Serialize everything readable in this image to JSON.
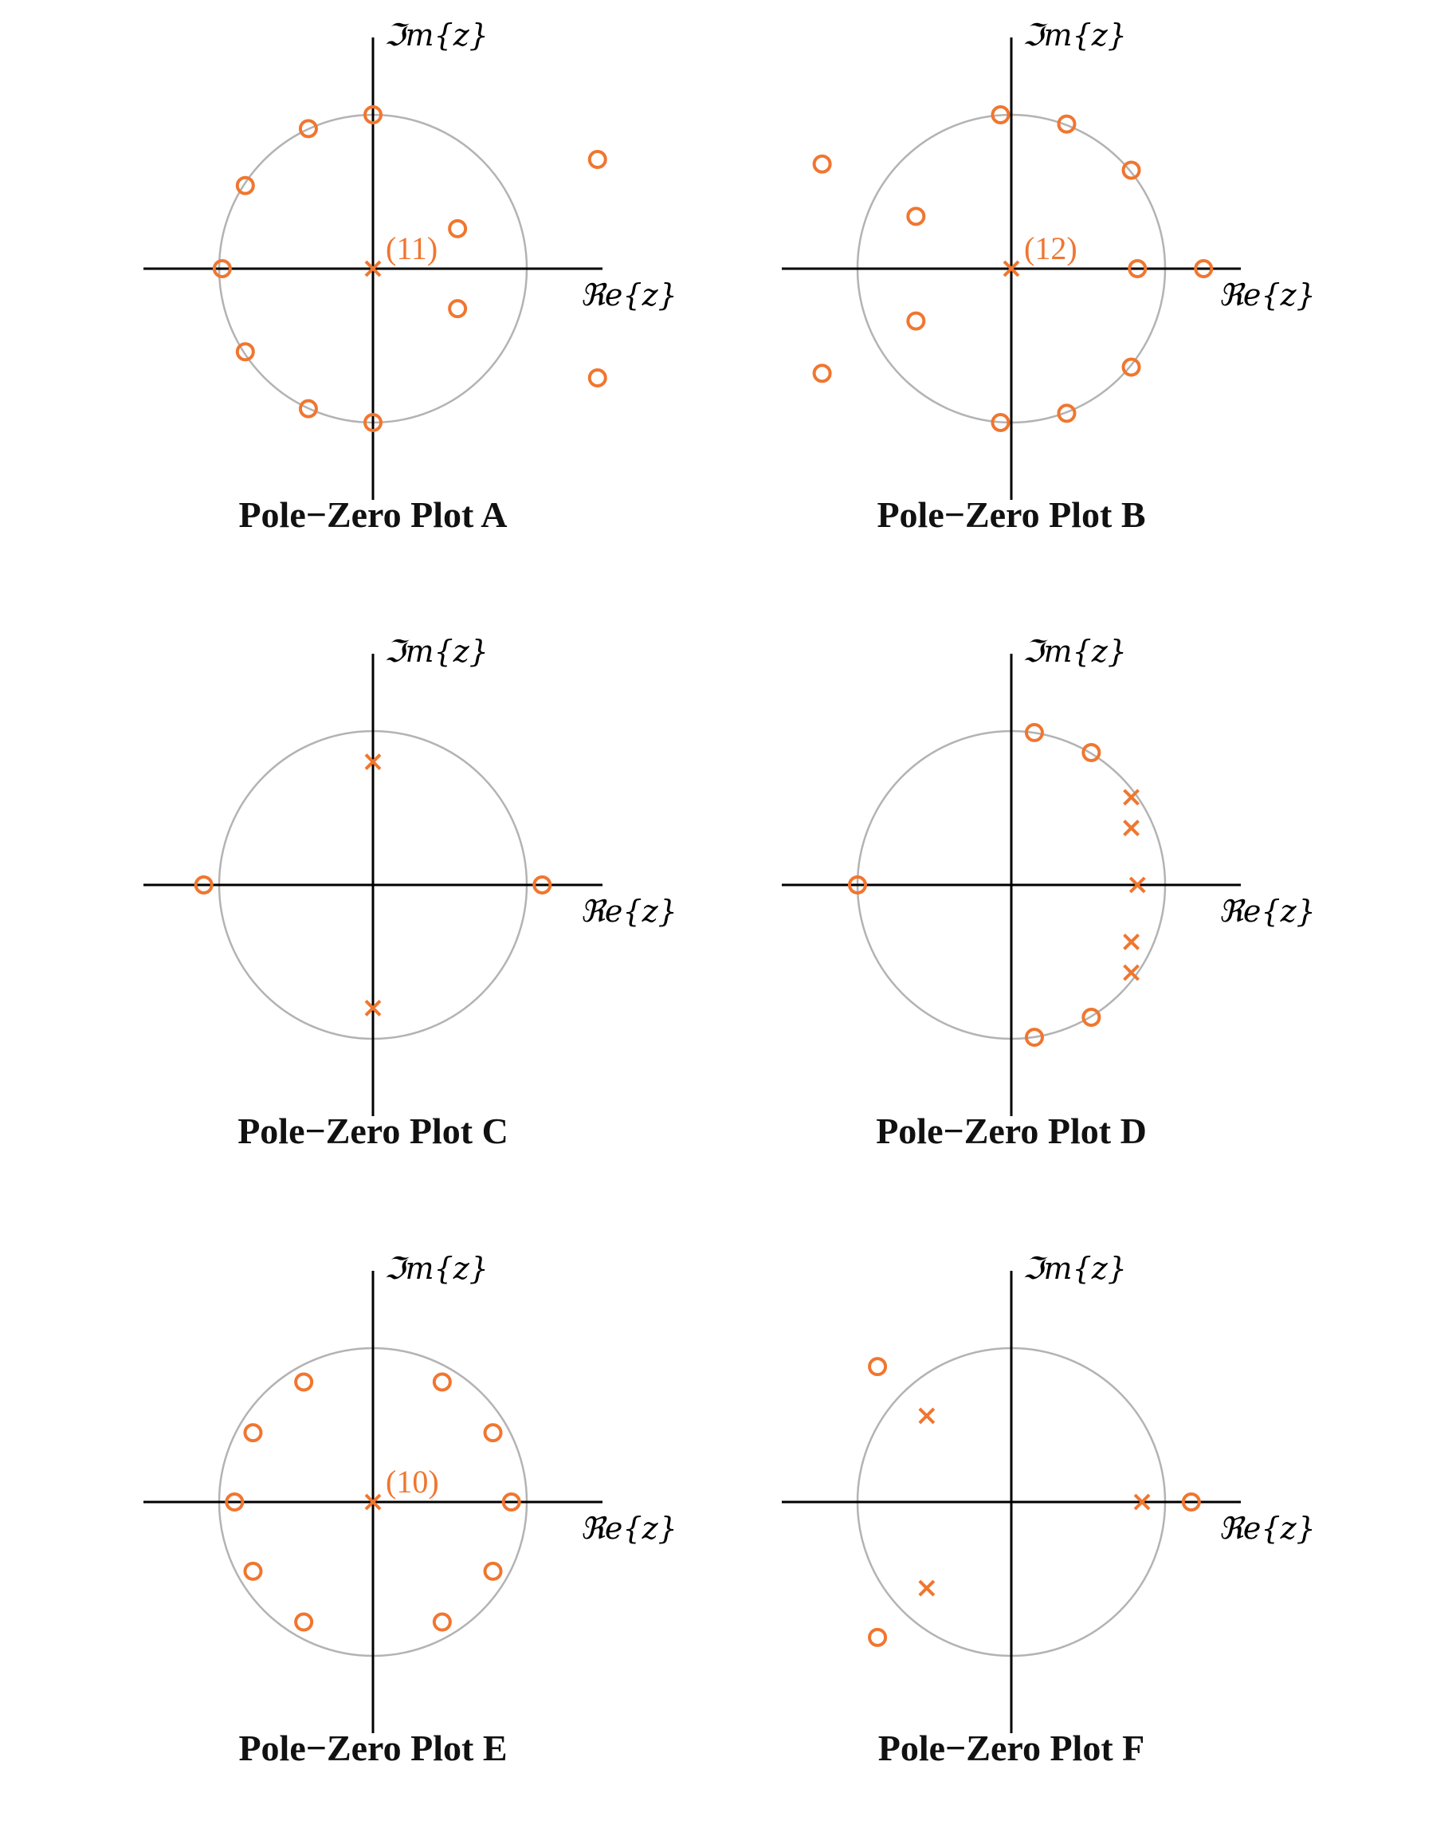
{
  "colors": {
    "marker": "#f0762f",
    "unit_circle": "#b3b3b3",
    "axis": "#000000"
  },
  "chart_data": [
    {
      "type": "scatter",
      "title": "Pole−Zero Plot A",
      "xlabel": "ℜe{z}",
      "ylabel": "ℑm{z}",
      "unit_circle": true,
      "poles": [
        {
          "re": 0.0,
          "im": 0.0,
          "label": "(11)"
        }
      ],
      "zeros": [
        {
          "re": 0.0,
          "im": 1.0
        },
        {
          "re": -0.42,
          "im": 0.91
        },
        {
          "re": -0.83,
          "im": 0.54
        },
        {
          "re": -0.98,
          "im": 0.0
        },
        {
          "re": -0.83,
          "im": -0.54
        },
        {
          "re": -0.42,
          "im": -0.91
        },
        {
          "re": 0.0,
          "im": -1.0
        },
        {
          "re": 0.55,
          "im": 0.26
        },
        {
          "re": 0.55,
          "im": -0.26
        },
        {
          "re": 1.46,
          "im": 0.71
        },
        {
          "re": 1.46,
          "im": -0.71
        }
      ]
    },
    {
      "type": "scatter",
      "title": "Pole−Zero Plot B",
      "xlabel": "ℜe{z}",
      "ylabel": "ℑm{z}",
      "unit_circle": true,
      "poles": [
        {
          "re": 0.0,
          "im": 0.0,
          "label": "(12)"
        }
      ],
      "zeros": [
        {
          "re": -0.07,
          "im": 1.0
        },
        {
          "re": 0.36,
          "im": 0.94
        },
        {
          "re": 0.78,
          "im": 0.64
        },
        {
          "re": 0.82,
          "im": 0.0
        },
        {
          "re": 1.25,
          "im": 0.0
        },
        {
          "re": 0.78,
          "im": -0.64
        },
        {
          "re": 0.36,
          "im": -0.94
        },
        {
          "re": -0.07,
          "im": -1.0
        },
        {
          "re": -0.62,
          "im": 0.34
        },
        {
          "re": -0.62,
          "im": -0.34
        },
        {
          "re": -1.23,
          "im": 0.68
        },
        {
          "re": -1.23,
          "im": -0.68
        }
      ]
    },
    {
      "type": "scatter",
      "title": "Pole−Zero Plot C",
      "xlabel": "ℜe{z}",
      "ylabel": "ℑm{z}",
      "unit_circle": true,
      "poles": [
        {
          "re": 0.0,
          "im": 0.8
        },
        {
          "re": 0.0,
          "im": -0.8
        }
      ],
      "zeros": [
        {
          "re": -1.1,
          "im": 0.0
        },
        {
          "re": 1.1,
          "im": 0.0
        }
      ]
    },
    {
      "type": "scatter",
      "title": "Pole−Zero Plot D",
      "xlabel": "ℜe{z}",
      "ylabel": "ℑm{z}",
      "unit_circle": true,
      "poles": [
        {
          "re": 0.78,
          "im": 0.57
        },
        {
          "re": 0.78,
          "im": 0.37
        },
        {
          "re": 0.82,
          "im": 0.0
        },
        {
          "re": 0.78,
          "im": -0.37
        },
        {
          "re": 0.78,
          "im": -0.57
        }
      ],
      "zeros": [
        {
          "re": 0.15,
          "im": 0.99
        },
        {
          "re": 0.52,
          "im": 0.86
        },
        {
          "re": -1.0,
          "im": 0.0
        },
        {
          "re": 0.52,
          "im": -0.86
        },
        {
          "re": 0.15,
          "im": -0.99
        }
      ]
    },
    {
      "type": "scatter",
      "title": "Pole−Zero Plot E",
      "xlabel": "ℜe{z}",
      "ylabel": "ℑm{z}",
      "unit_circle": true,
      "poles": [
        {
          "re": 0.0,
          "im": 0.0,
          "label": "(10)"
        }
      ],
      "zeros": [
        {
          "re": 0.9,
          "im": 0.0
        },
        {
          "re": 0.78,
          "im": 0.45
        },
        {
          "re": 0.45,
          "im": 0.78
        },
        {
          "re": -0.45,
          "im": 0.78
        },
        {
          "re": -0.78,
          "im": 0.45
        },
        {
          "re": -0.9,
          "im": 0.0
        },
        {
          "re": -0.78,
          "im": -0.45
        },
        {
          "re": -0.45,
          "im": -0.78
        },
        {
          "re": 0.45,
          "im": -0.78
        },
        {
          "re": 0.78,
          "im": -0.45
        }
      ]
    },
    {
      "type": "scatter",
      "title": "Pole−Zero Plot F",
      "xlabel": "ℜe{z}",
      "ylabel": "ℑm{z}",
      "unit_circle": true,
      "poles": [
        {
          "re": -0.55,
          "im": 0.56
        },
        {
          "re": -0.55,
          "im": -0.56
        },
        {
          "re": 0.85,
          "im": 0.0
        }
      ],
      "zeros": [
        {
          "re": -0.87,
          "im": 0.88
        },
        {
          "re": -0.87,
          "im": -0.88
        },
        {
          "re": 1.17,
          "im": 0.0
        }
      ]
    }
  ]
}
